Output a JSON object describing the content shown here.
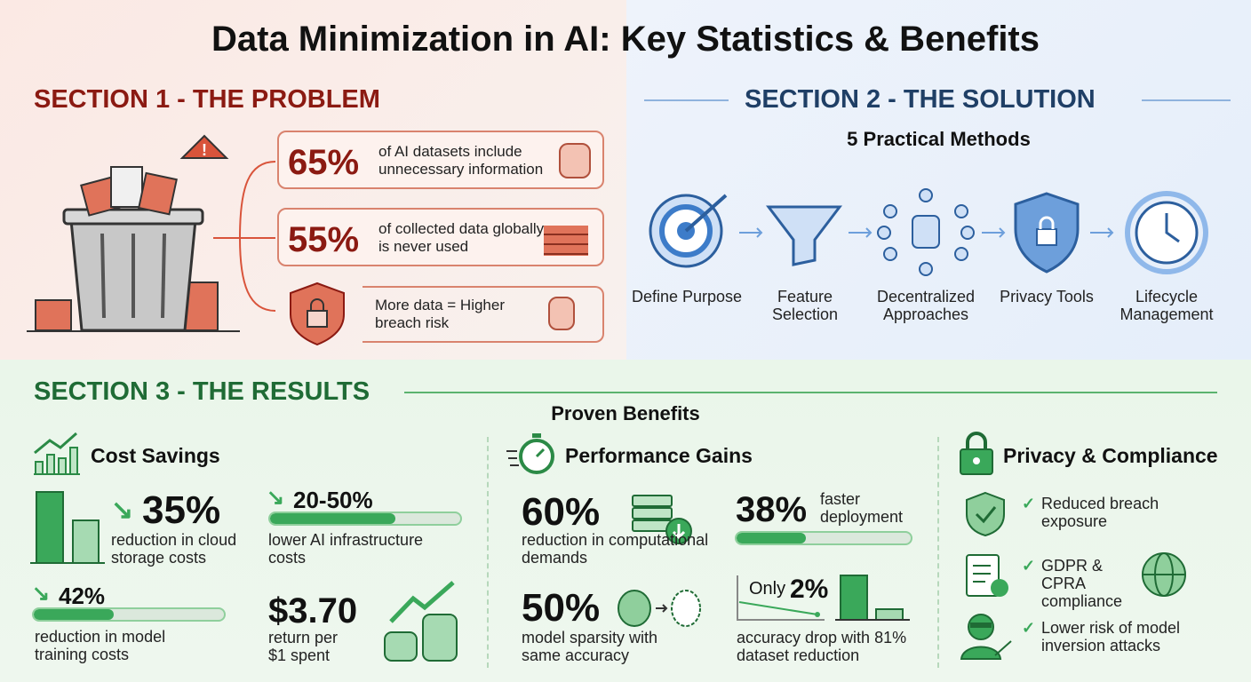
{
  "title": "Data Minimization in AI: Key Statistics & Benefits",
  "colors": {
    "problem": "#8b1a12",
    "solution": "#1f3f66",
    "results": "#1f6b35",
    "green": "#3aa85a",
    "red": "#d9543b",
    "blue": "#3d7cc9"
  },
  "section1": {
    "heading": "SECTION 1 - THE PROBLEM",
    "stats": [
      {
        "value": "65%",
        "text": "of AI datasets include unnecessary information",
        "icon": "database-icon"
      },
      {
        "value": "55%",
        "text": "of collected data globally is never used",
        "icon": "bricks-icon"
      },
      {
        "value": "",
        "text": "More data = Higher breach risk",
        "icon": "database-warning-icon"
      }
    ]
  },
  "section2": {
    "heading": "SECTION 2 - THE SOLUTION",
    "subheading": "5 Practical Methods",
    "methods": [
      {
        "label": "Define Purpose",
        "icon": "target-icon"
      },
      {
        "label": "Feature Selection",
        "icon": "funnel-icon"
      },
      {
        "label": "Decentralized Approaches",
        "icon": "network-icon"
      },
      {
        "label": "Privacy Tools",
        "icon": "shield-lock-icon"
      },
      {
        "label": "Lifecycle Management",
        "icon": "clock-cycle-icon"
      }
    ]
  },
  "section3": {
    "heading": "SECTION 3 - THE RESULTS",
    "subheading": "Proven Benefits",
    "cost": {
      "title": "Cost Savings",
      "items": [
        {
          "value": "35%",
          "text": "reduction in cloud storage costs"
        },
        {
          "value": "20-50%",
          "text": "lower AI infrastructure costs",
          "progress": 66
        },
        {
          "value": "42%",
          "text": "reduction in model training costs",
          "progress": 42
        },
        {
          "value": "$3.70",
          "text": "return per $1 spent"
        }
      ]
    },
    "performance": {
      "title": "Performance Gains",
      "items": [
        {
          "value": "60%",
          "text": "reduction in computational demands"
        },
        {
          "value": "38%",
          "text": "faster deployment",
          "progress": 40
        },
        {
          "value": "50%",
          "text": "model sparsity with same accuracy"
        },
        {
          "prefix": "Only",
          "value": "2%",
          "text": "accuracy drop with 81% dataset reduction"
        }
      ]
    },
    "privacy": {
      "title": "Privacy & Compliance",
      "items": [
        {
          "text": "Reduced breach exposure"
        },
        {
          "text": "GDPR & CPRA compliance"
        },
        {
          "text": "Lower risk of model inversion attacks"
        }
      ]
    }
  }
}
